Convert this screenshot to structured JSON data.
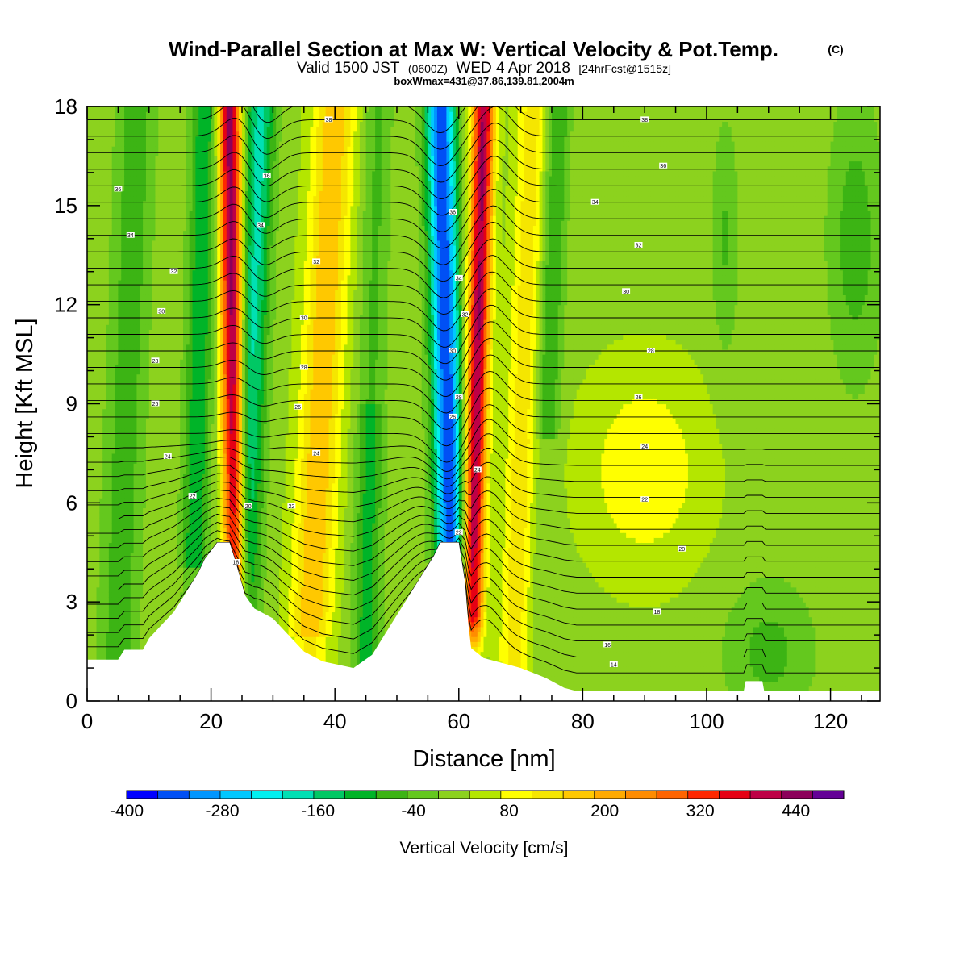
{
  "chart_data": {
    "type": "heatmap",
    "title": "Wind-Parallel Section at Max W: Vertical Velocity & Pot.Temp.",
    "title_mark": "(C)",
    "subtitle_parts": [
      "Valid 1500 JST",
      "(0600Z)",
      "WED 4 Apr 2018",
      "[24hrFcst@1515z]"
    ],
    "info_line": "boxWmax=431@37.86,139.81,2004m",
    "xlabel": "Distance [nm]",
    "ylabel": "Height [Kft MSL]",
    "xlim": [
      0,
      128
    ],
    "ylim": [
      0,
      18
    ],
    "x_ticks": [
      "0",
      "20",
      "40",
      "60",
      "80",
      "100",
      "120"
    ],
    "y_ticks": [
      "0",
      "3",
      "6",
      "9",
      "12",
      "15",
      "18"
    ],
    "colorbar": {
      "title": "Vertical Velocity [cm/s]",
      "min": -400,
      "max": 500,
      "step": 40,
      "tick_labels": [
        "-400",
        "-280",
        "-160",
        "-40",
        "80",
        "200",
        "320",
        "440"
      ],
      "colors": [
        "#0000ff",
        "#0050f5",
        "#0096ff",
        "#00c8ff",
        "#00f0f0",
        "#00e0b4",
        "#00c864",
        "#00b428",
        "#3cb414",
        "#64c81e",
        "#8cd21e",
        "#b4e600",
        "#ffff00",
        "#f5e600",
        "#ffc800",
        "#ffaa00",
        "#ff8c00",
        "#ff6400",
        "#ff2800",
        "#e60014",
        "#be0046",
        "#8c005a",
        "#640096"
      ]
    },
    "updraft_cores": [
      {
        "x_top": 23,
        "x_bottom": 24,
        "peak": 440
      },
      {
        "x_top": 64,
        "x_bottom": 62,
        "peak": 420
      }
    ],
    "downdraft_cores": [
      {
        "x_top": 28,
        "x_bottom": 25,
        "peak": -200
      },
      {
        "x_top": 57,
        "x_bottom": 59,
        "peak": -380
      }
    ],
    "terrain_profile": [
      [
        0,
        1.25
      ],
      [
        5,
        1.25
      ],
      [
        6,
        1.55
      ],
      [
        9,
        1.55
      ],
      [
        10,
        1.9
      ],
      [
        12,
        2.3
      ],
      [
        14,
        2.7
      ],
      [
        16,
        3.3
      ],
      [
        18,
        3.9
      ],
      [
        19,
        4.3
      ],
      [
        21,
        4.8
      ],
      [
        23,
        4.8
      ],
      [
        24,
        4.2
      ],
      [
        25.5,
        3.2
      ],
      [
        27,
        2.8
      ],
      [
        30,
        2.5
      ],
      [
        33,
        1.9
      ],
      [
        35,
        1.5
      ],
      [
        38,
        1.2
      ],
      [
        43,
        1.0
      ],
      [
        46,
        1.4
      ],
      [
        48,
        2.0
      ],
      [
        50,
        2.6
      ],
      [
        52,
        3.2
      ],
      [
        54,
        3.8
      ],
      [
        56,
        4.4
      ],
      [
        57,
        4.8
      ],
      [
        60,
        4.8
      ],
      [
        61,
        3.6
      ],
      [
        61.5,
        2.4
      ],
      [
        62,
        1.6
      ],
      [
        64,
        1.3
      ],
      [
        70,
        1.0
      ],
      [
        74,
        0.7
      ],
      [
        77,
        0.4
      ],
      [
        79,
        0.3
      ],
      [
        106,
        0.3
      ],
      [
        106.3,
        0.6
      ],
      [
        109,
        0.6
      ],
      [
        109.3,
        0.3
      ],
      [
        128,
        0.3
      ]
    ],
    "theta_labels": [
      {
        "x": 5,
        "y": 15.5,
        "text": "36"
      },
      {
        "x": 7,
        "y": 14.1,
        "text": "34"
      },
      {
        "x": 14,
        "y": 13.0,
        "text": "32"
      },
      {
        "x": 12,
        "y": 11.8,
        "text": "30"
      },
      {
        "x": 11,
        "y": 10.3,
        "text": "28"
      },
      {
        "x": 11,
        "y": 9.0,
        "text": "26"
      },
      {
        "x": 13,
        "y": 7.4,
        "text": "24"
      },
      {
        "x": 17,
        "y": 6.2,
        "text": "22"
      },
      {
        "x": 24,
        "y": 4.2,
        "text": "18"
      },
      {
        "x": 26,
        "y": 5.9,
        "text": "20"
      },
      {
        "x": 39,
        "y": 17.6,
        "text": "38"
      },
      {
        "x": 29,
        "y": 15.9,
        "text": "36"
      },
      {
        "x": 28,
        "y": 14.4,
        "text": "34"
      },
      {
        "x": 37,
        "y": 13.3,
        "text": "32"
      },
      {
        "x": 35,
        "y": 11.6,
        "text": "30"
      },
      {
        "x": 35,
        "y": 10.1,
        "text": "28"
      },
      {
        "x": 34,
        "y": 8.9,
        "text": "26"
      },
      {
        "x": 37,
        "y": 7.5,
        "text": "24"
      },
      {
        "x": 33,
        "y": 5.9,
        "text": "22"
      },
      {
        "x": 59,
        "y": 14.8,
        "text": "36"
      },
      {
        "x": 60,
        "y": 12.8,
        "text": "34"
      },
      {
        "x": 61,
        "y": 11.7,
        "text": "32"
      },
      {
        "x": 59,
        "y": 10.6,
        "text": "30"
      },
      {
        "x": 60,
        "y": 9.2,
        "text": "28"
      },
      {
        "x": 59,
        "y": 8.6,
        "text": "26"
      },
      {
        "x": 63,
        "y": 7.0,
        "text": "24"
      },
      {
        "x": 60,
        "y": 5.1,
        "text": "22"
      },
      {
        "x": 90,
        "y": 17.6,
        "text": "38"
      },
      {
        "x": 93,
        "y": 16.2,
        "text": "36"
      },
      {
        "x": 82,
        "y": 15.1,
        "text": "34"
      },
      {
        "x": 89,
        "y": 13.8,
        "text": "32"
      },
      {
        "x": 87,
        "y": 12.4,
        "text": "30"
      },
      {
        "x": 91,
        "y": 10.6,
        "text": "28"
      },
      {
        "x": 89,
        "y": 9.2,
        "text": "26"
      },
      {
        "x": 90,
        "y": 7.7,
        "text": "24"
      },
      {
        "x": 90,
        "y": 6.1,
        "text": "22"
      },
      {
        "x": 96,
        "y": 4.6,
        "text": "20"
      },
      {
        "x": 92,
        "y": 2.7,
        "text": "18"
      },
      {
        "x": 84,
        "y": 1.7,
        "text": "16"
      },
      {
        "x": 85,
        "y": 1.1,
        "text": "14"
      }
    ]
  }
}
